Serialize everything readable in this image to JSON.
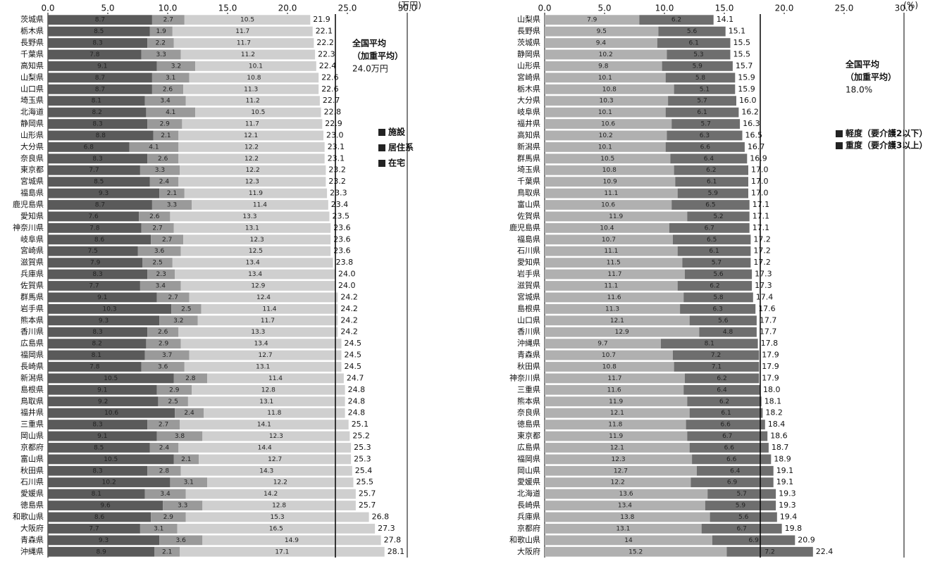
{
  "chart_data": [
    {
      "type": "bar",
      "orientation": "horizontal",
      "stacked": true,
      "unit_label": "(万円)",
      "categories": [
        "茨城県",
        "栃木県",
        "長野県",
        "千葉県",
        "高知県",
        "山梨県",
        "山口県",
        "埼玉県",
        "北海道",
        "静岡県",
        "山形県",
        "大分県",
        "奈良県",
        "東京都",
        "宮城県",
        "福島県",
        "鹿児島県",
        "愛知県",
        "神奈川県",
        "岐阜県",
        "宮崎県",
        "滋賀県",
        "兵庫県",
        "佐賀県",
        "群馬県",
        "岩手県",
        "熊本県",
        "香川県",
        "広島県",
        "福岡県",
        "長崎県",
        "新潟県",
        "島根県",
        "鳥取県",
        "福井県",
        "三重県",
        "岡山県",
        "京都府",
        "富山県",
        "秋田県",
        "石川県",
        "愛媛県",
        "徳島県",
        "和歌山県",
        "大阪府",
        "青森県",
        "沖縄県"
      ],
      "series": [
        {
          "name": "施設",
          "color": "#5a5a5a",
          "values": [
            8.7,
            8.5,
            8.3,
            7.8,
            9.1,
            8.7,
            8.7,
            8.1,
            8.2,
            8.3,
            8.8,
            6.8,
            8.3,
            7.7,
            8.5,
            9.3,
            8.7,
            7.6,
            7.8,
            8.6,
            7.5,
            7.9,
            8.3,
            7.7,
            9.1,
            10.3,
            9.3,
            8.3,
            8.2,
            8.1,
            7.8,
            10.5,
            9.1,
            9.2,
            10.6,
            8.3,
            9.1,
            8.5,
            10.5,
            8.3,
            10.2,
            8.1,
            9.6,
            8.6,
            7.7,
            9.3,
            8.9
          ]
        },
        {
          "name": "居住系",
          "color": "#9a9a9a",
          "values": [
            2.7,
            1.9,
            2.2,
            3.3,
            3.2,
            3.1,
            2.6,
            3.4,
            4.1,
            2.9,
            2.1,
            4.1,
            2.6,
            3.3,
            2.4,
            2.1,
            3.3,
            2.6,
            2.7,
            2.7,
            3.6,
            2.5,
            2.3,
            3.4,
            2.7,
            2.5,
            3.2,
            2.6,
            2.9,
            3.7,
            3.6,
            2.8,
            2.9,
            2.5,
            2.4,
            2.7,
            3.8,
            2.4,
            2.1,
            2.8,
            3.1,
            3.4,
            3.3,
            2.9,
            3.1,
            3.6,
            2.1
          ]
        },
        {
          "name": "在宅",
          "color": "#cfcfcf",
          "values": [
            10.5,
            11.7,
            11.7,
            11.2,
            10.1,
            10.8,
            11.3,
            11.2,
            10.5,
            11.7,
            12.1,
            12.2,
            12.2,
            12.2,
            12.3,
            11.9,
            11.4,
            13.3,
            13.1,
            12.3,
            12.5,
            13.4,
            13.4,
            12.9,
            12.4,
            11.4,
            11.7,
            13.3,
            13.4,
            12.7,
            13.1,
            11.4,
            12.8,
            13.1,
            11.8,
            14.1,
            12.3,
            14.4,
            12.7,
            14.3,
            12.2,
            14.2,
            12.8,
            15.3,
            16.5,
            14.9,
            17.1
          ]
        }
      ],
      "totals": {
        "values": [
          21.9,
          22.1,
          22.2,
          22.3,
          22.4,
          22.6,
          22.6,
          22.7,
          22.8,
          22.9,
          23.0,
          23.1,
          23.1,
          23.2,
          23.2,
          23.3,
          23.4,
          23.5,
          23.6,
          23.6,
          23.6,
          23.8,
          24.0,
          24.0,
          24.2,
          24.2,
          24.2,
          24.2,
          24.5,
          24.5,
          24.5,
          24.7,
          24.8,
          24.8,
          24.8,
          25.1,
          25.2,
          25.3,
          25.3,
          25.4,
          25.5,
          25.7,
          25.7,
          26.8,
          27.3,
          27.8,
          28.1
        ],
        "value_labels": [
          "21.9",
          "22.1",
          "22.2",
          "22.3",
          "22.4",
          "22.6",
          "22.6",
          "22.7",
          "22.8",
          "22.9",
          "23.0",
          "23.1",
          "23.1",
          "23.2",
          "23.2",
          "23.3",
          "23.4",
          "23.5",
          "23.6",
          "23.6",
          "23.6",
          "23.8",
          "24.0",
          "24.0",
          "24.2",
          "24.2",
          "24.2",
          "24.2",
          "24.5",
          "24.5",
          "24.5",
          "24.7",
          "24.8",
          "24.8",
          "24.8",
          "25.1",
          "25.2",
          "25.3",
          "25.3",
          "25.4",
          "25.5",
          "25.7",
          "25.7",
          "26.8",
          "27.3",
          "27.8",
          "28.1"
        ]
      },
      "xlim": [
        0,
        30
      ],
      "xticks": [
        {
          "value": 0,
          "label": "0.0"
        },
        {
          "value": 5,
          "label": "5.0"
        },
        {
          "value": 10,
          "label": "10.0"
        },
        {
          "value": 15,
          "label": "15.0"
        },
        {
          "value": 20,
          "label": "20.0"
        },
        {
          "value": 25,
          "label": "25.0"
        },
        {
          "value": 30,
          "label": "30.0"
        }
      ],
      "average": {
        "value": 24.0,
        "lines": [
          "全国平均",
          "（加重平均）",
          "24.0万円"
        ]
      }
    },
    {
      "type": "bar",
      "orientation": "horizontal",
      "stacked": true,
      "unit_label": "(%)",
      "categories": [
        "山梨県",
        "長野県",
        "茨城県",
        "静岡県",
        "山形県",
        "宮崎県",
        "栃木県",
        "大分県",
        "岐阜県",
        "福井県",
        "高知県",
        "新潟県",
        "群馬県",
        "埼玉県",
        "千葉県",
        "鳥取県",
        "富山県",
        "佐賀県",
        "鹿児島県",
        "福島県",
        "石川県",
        "愛知県",
        "岩手県",
        "滋賀県",
        "宮城県",
        "島根県",
        "山口県",
        "香川県",
        "沖縄県",
        "青森県",
        "秋田県",
        "神奈川県",
        "三重県",
        "熊本県",
        "奈良県",
        "徳島県",
        "東京都",
        "広島県",
        "福岡県",
        "岡山県",
        "愛媛県",
        "北海道",
        "長崎県",
        "兵庫県",
        "京都府",
        "和歌山県",
        "大阪府"
      ],
      "series": [
        {
          "name": "軽度（要介護2以下）",
          "color": "#b0b0b0",
          "values": [
            7.9,
            9.5,
            9.4,
            10.2,
            9.8,
            10.1,
            10.8,
            10.3,
            10.1,
            10.6,
            10.2,
            10.1,
            10.5,
            10.8,
            10.9,
            11.1,
            10.6,
            11.9,
            10.4,
            10.7,
            11.1,
            11.5,
            11.7,
            11.1,
            11.6,
            11.3,
            12.1,
            12.9,
            9.7,
            10.7,
            10.8,
            11.7,
            11.6,
            11.9,
            12.1,
            11.8,
            11.9,
            12.1,
            12.3,
            12.7,
            12.2,
            13.6,
            13.4,
            13.8,
            13.1,
            14.0,
            15.2
          ]
        },
        {
          "name": "重度（要介護3以上）",
          "color": "#6e6e6e",
          "values": [
            6.2,
            5.6,
            6.1,
            5.3,
            5.9,
            5.8,
            5.1,
            5.7,
            6.1,
            5.7,
            6.3,
            6.6,
            6.4,
            6.2,
            6.1,
            5.9,
            6.5,
            5.2,
            6.7,
            6.5,
            6.1,
            5.7,
            5.6,
            6.2,
            5.8,
            6.3,
            5.6,
            4.8,
            8.1,
            7.2,
            7.1,
            6.2,
            6.4,
            6.2,
            6.1,
            6.6,
            6.7,
            6.6,
            6.6,
            6.4,
            6.9,
            5.7,
            5.9,
            5.6,
            6.7,
            6.9,
            7.2
          ]
        }
      ],
      "totals": {
        "values": [
          14.1,
          15.1,
          15.5,
          15.5,
          15.7,
          15.9,
          15.9,
          16.0,
          16.2,
          16.3,
          16.5,
          16.7,
          16.9,
          17.0,
          17.0,
          17.0,
          17.1,
          17.1,
          17.1,
          17.2,
          17.2,
          17.2,
          17.3,
          17.3,
          17.4,
          17.6,
          17.7,
          17.7,
          17.8,
          17.9,
          17.9,
          17.9,
          18.0,
          18.1,
          18.2,
          18.4,
          18.6,
          18.7,
          18.9,
          19.1,
          19.1,
          19.3,
          19.3,
          19.4,
          19.8,
          20.9,
          22.4
        ],
        "value_labels": [
          "14.1",
          "15.1",
          "15.5",
          "15.5",
          "15.7",
          "15.9",
          "15.9",
          "16.0",
          "16.2",
          "16.3",
          "16.5",
          "16.7",
          "16.9",
          "17.0",
          "17.0",
          "17.0",
          "17.1",
          "17.1",
          "17.1",
          "17.2",
          "17.2",
          "17.2",
          "17.3",
          "17.3",
          "17.4",
          "17.6",
          "17.7",
          "17.7",
          "17.8",
          "17.9",
          "17.9",
          "17.9",
          "18.0",
          "18.1",
          "18.2",
          "18.4",
          "18.6",
          "18.7",
          "18.9",
          "19.1",
          "19.1",
          "19.3",
          "19.3",
          "19.4",
          "19.8",
          "20.9",
          "22.4"
        ]
      },
      "xlim": [
        0,
        30
      ],
      "xticks": [
        {
          "value": 0,
          "label": "0.0"
        },
        {
          "value": 5,
          "label": "5.0"
        },
        {
          "value": 10,
          "label": "10.0"
        },
        {
          "value": 15,
          "label": "15.0"
        },
        {
          "value": 20,
          "label": "20.0"
        },
        {
          "value": 25,
          "label": "25.0"
        },
        {
          "value": 30,
          "label": "30.0"
        }
      ],
      "average": {
        "value": 18.0,
        "lines": [
          "全国平均",
          "（加重平均）",
          "18.0%"
        ]
      }
    }
  ]
}
